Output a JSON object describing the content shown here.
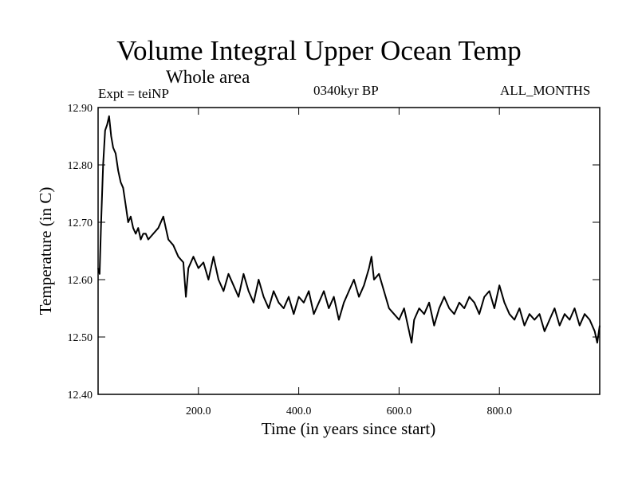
{
  "header": {
    "title": "Volume Integral Upper Ocean Temp",
    "subtitle": "Whole area",
    "experiment": "Expt = teiNP",
    "era": "0340kyr BP",
    "months": "ALL_MONTHS"
  },
  "chart_data": {
    "type": "line",
    "title": "Volume Integral Upper Ocean Temp",
    "subtitle": "Whole area",
    "xlabel": "Time (in years since start)",
    "ylabel": "Temperature (in C)",
    "xlim": [
      0,
      1000
    ],
    "ylim": [
      12.4,
      12.9
    ],
    "xticks": [
      200,
      400,
      600,
      800
    ],
    "xtick_labels": [
      "200.0",
      "400.0",
      "600.0",
      "800.0"
    ],
    "yticks": [
      12.4,
      12.5,
      12.6,
      12.7,
      12.8,
      12.9
    ],
    "ytick_labels": [
      "12.40",
      "12.50",
      "12.60",
      "12.70",
      "12.80",
      "12.90"
    ],
    "grid": false,
    "series": [
      {
        "name": "teiNP",
        "x": [
          0,
          3,
          6,
          10,
          14,
          18,
          22,
          26,
          30,
          35,
          40,
          45,
          50,
          55,
          60,
          65,
          70,
          75,
          80,
          85,
          90,
          95,
          100,
          110,
          120,
          130,
          135,
          140,
          150,
          160,
          170,
          175,
          180,
          190,
          200,
          210,
          220,
          230,
          240,
          250,
          260,
          270,
          280,
          290,
          300,
          310,
          320,
          330,
          340,
          350,
          360,
          370,
          380,
          390,
          400,
          410,
          420,
          430,
          440,
          450,
          460,
          470,
          480,
          490,
          500,
          510,
          520,
          530,
          540,
          545,
          550,
          560,
          570,
          580,
          590,
          600,
          610,
          620,
          625,
          630,
          640,
          650,
          660,
          670,
          680,
          690,
          700,
          710,
          720,
          730,
          740,
          750,
          760,
          770,
          780,
          790,
          800,
          810,
          820,
          830,
          840,
          850,
          860,
          870,
          880,
          890,
          900,
          910,
          920,
          930,
          940,
          950,
          960,
          970,
          980,
          990,
          995,
          1000
        ],
        "values": [
          12.62,
          12.61,
          12.7,
          12.8,
          12.86,
          12.87,
          12.885,
          12.85,
          12.83,
          12.82,
          12.79,
          12.77,
          12.76,
          12.73,
          12.7,
          12.71,
          12.69,
          12.68,
          12.69,
          12.67,
          12.68,
          12.68,
          12.67,
          12.68,
          12.69,
          12.71,
          12.69,
          12.67,
          12.66,
          12.64,
          12.63,
          12.57,
          12.62,
          12.64,
          12.62,
          12.63,
          12.6,
          12.64,
          12.6,
          12.58,
          12.61,
          12.59,
          12.57,
          12.61,
          12.58,
          12.56,
          12.6,
          12.57,
          12.55,
          12.58,
          12.56,
          12.55,
          12.57,
          12.54,
          12.57,
          12.56,
          12.58,
          12.54,
          12.56,
          12.58,
          12.55,
          12.57,
          12.53,
          12.56,
          12.58,
          12.6,
          12.57,
          12.59,
          12.62,
          12.64,
          12.6,
          12.61,
          12.58,
          12.55,
          12.54,
          12.53,
          12.55,
          12.51,
          12.49,
          12.53,
          12.55,
          12.54,
          12.56,
          12.52,
          12.55,
          12.57,
          12.55,
          12.54,
          12.56,
          12.55,
          12.57,
          12.56,
          12.54,
          12.57,
          12.58,
          12.55,
          12.59,
          12.56,
          12.54,
          12.53,
          12.55,
          12.52,
          12.54,
          12.53,
          12.54,
          12.51,
          12.53,
          12.55,
          12.52,
          12.54,
          12.53,
          12.55,
          12.52,
          12.54,
          12.53,
          12.51,
          12.49,
          12.52
        ]
      }
    ]
  }
}
